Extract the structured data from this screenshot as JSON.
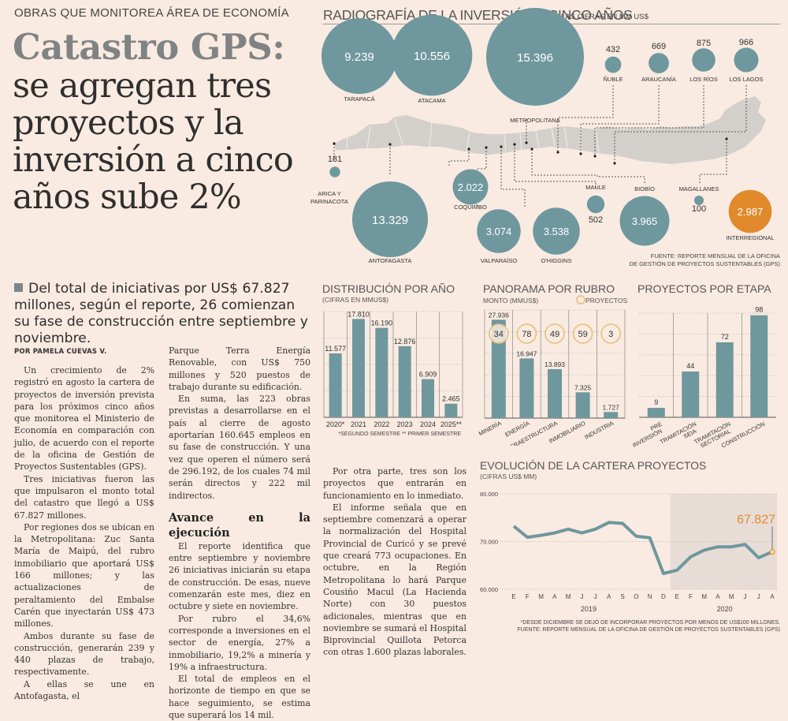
{
  "article": {
    "kicker": "OBRAS QUE MONITOREA ÁREA DE ECONOMÍA",
    "headline_bold": "Catastro GPS:",
    "headline_lines": [
      "se agregan tres",
      "proyectos y la",
      "inversión a cinco",
      "años sube 2%"
    ],
    "lead": "Del total de iniciativas por US$ 67.827 millones, según el reporte, 26 comienzan su fase de construcción entre septiembre y noviembre.",
    "byline": "POR PAMELA CUEVAS V.",
    "col1": [
      "Un crecimiento de 2% registró en agosto la cartera de proyectos de inversión prevista para los próximos cinco años que monitorea el Ministerio de Economía en comparación con julio, de acuerdo con el reporte de la oficina de Gestión de Proyectos Sustentables (GPS).",
      "Tres iniciativas fueron las que impulsaron el monto total del catastro que llegó a US$ 67.827 millones.",
      "Por regiones dos se ubican en la Metropolitana: Zuc Santa María de Maipú, del rubro inmobiliario que aportará US$ 166 millones; y las actualizaciones de peraltamiento del Embalse Carén que inyectarán US$ 473 millones.",
      "Ambos durante su fase de construcción, generarán 239 y 440 plazas de trabajo, respectivamente.",
      "A ellas se une en Antofagasta, el"
    ],
    "col2_a": [
      "Parque Terra Energía Renovable, con US$ 750 millones y 520 puestos de trabajo durante su edificación.",
      "En suma, las 223 obras previstas a desarrollarse en el país al cierre de agosto aportarían 160.645 empleos en su fase de construcción. Y una vez que operen el número será de 296.192, de los cuales 74 mil serán directos y 222 mil indirectos."
    ],
    "subhead": "Avance en la ejecución",
    "col2_b": [
      "El reporte identifica que entre septiembre y noviembre 26 iniciativas iniciarán su etapa de construcción. De esas, nueve comenzarán este mes, diez en octubre y siete en noviembre.",
      "Por rubro el 34,6% corresponde a inversiones en el sector de energía, 27% a inmobiliario, 19,2% a minería y 19% a infraestructura.",
      "El total de empleos en el horizonte de tiempo en que se hace seguimiento, se estima que superará los 14 mil."
    ],
    "col3": [
      "Por otra parte, tres son los proyectos que entrarán en funcionamiento en lo inmediato.",
      "El informe señala que en septiembre comenzará a operar la normalización del Hospital Provincial de Curicó y se prevé que creará 773 ocupaciones. En octubre, en la Región Metropolitana lo hará Parque Cousiño Macul (La Hacienda Norte) con 30 puestos adicionales, mientras que en noviembre se sumará el Hospital Biprovincial Quillota Petorca con otras 1.600 plazas laborales."
    ]
  },
  "colors": {
    "teal": "#6f979e",
    "orange": "#e08a2c",
    "map_gray": "#d3d0cb",
    "circle_outline": "#e8bf7a",
    "shade": "#e8ddd6"
  },
  "chart_data": [
    {
      "type": "bubble-map",
      "title": "RADIOGRAFÍA DE LA INVERSIÓN A CINCO AÑOS",
      "subtitle": "LAS CIFRAS EN MM US$",
      "regions": [
        {
          "name": "ARICA Y PARINACOTA",
          "value": 181,
          "label": "181"
        },
        {
          "name": "TARAPACÁ",
          "value": 9239,
          "label": "9.239"
        },
        {
          "name": "ANTOFAGASTA",
          "value": 13329,
          "label": "13.329"
        },
        {
          "name": "ATACAMA",
          "value": 10556,
          "label": "10.556"
        },
        {
          "name": "COQUIMBO",
          "value": 2022,
          "label": "2.022"
        },
        {
          "name": "VALPARAÍSO",
          "value": 3074,
          "label": "3.074"
        },
        {
          "name": "METROPOLITANA",
          "value": 15396,
          "label": "15.396"
        },
        {
          "name": "O'HIGGINS",
          "value": 3538,
          "label": "3.538"
        },
        {
          "name": "MAULE",
          "value": 502,
          "label": "502"
        },
        {
          "name": "ÑUBLE",
          "value": 432,
          "label": "432"
        },
        {
          "name": "BIOBÍO",
          "value": 3965,
          "label": "3.965"
        },
        {
          "name": "ARAUCANÍA",
          "value": 669,
          "label": "669"
        },
        {
          "name": "LOS RÍOS",
          "value": 875,
          "label": "875"
        },
        {
          "name": "LOS LAGOS",
          "value": 966,
          "label": "966"
        },
        {
          "name": "MAGALLANES",
          "value": 100,
          "label": "100"
        },
        {
          "name": "INTERREGIONAL",
          "value": 2987,
          "label": "2.987",
          "highlight": true
        }
      ],
      "source": [
        "FUENTE: REPORTE MENSUAL DE LA OFICINA",
        "DE GESTIÓN DE PROYECTOS SUSTENTABLES (GPS)"
      ]
    },
    {
      "type": "bar",
      "title": "DISTRIBUCIÓN POR AÑO",
      "subtitle": "(CIFRAS EN MMUS$)",
      "categories": [
        "2020*",
        "2021",
        "2022",
        "2023",
        "2024",
        "2025**"
      ],
      "values": [
        11577,
        17810,
        16190,
        12876,
        6909,
        2465
      ],
      "labels": [
        "11.577",
        "17.810",
        "16.190",
        "12.876",
        "6.909",
        "2.465"
      ],
      "ylim": [
        0,
        18000
      ],
      "note": "*SEGUNDO SEMESTRE ** PRIMER SEMESTRE"
    },
    {
      "type": "bar",
      "title": "PANORAMA POR RUBRO",
      "subtitle": "MONTO (MMUS$)",
      "legend": "PROYECTOS",
      "categories": [
        "MINERÍA",
        "ENERGÍA",
        "INFRAESTRUCTURA",
        "INMOBILIARIO",
        "INDUSTRIA"
      ],
      "values": [
        27936,
        16947,
        13893,
        7325,
        1727
      ],
      "labels": [
        "27.936",
        "16.947",
        "13.893",
        "7.325",
        "1.727"
      ],
      "projects": [
        34,
        78,
        49,
        59,
        3
      ],
      "ylim": [
        0,
        28000
      ]
    },
    {
      "type": "bar",
      "title": "PROYECTOS POR ETAPA",
      "categories": [
        [
          "PRE",
          "INVERSIÓN"
        ],
        [
          "TRAMITACIÓN",
          "SEIA"
        ],
        [
          "TRAMITACIÓN",
          "SECTORIAL"
        ],
        [
          "CONSTRUCCIÓN"
        ]
      ],
      "values": [
        9,
        44,
        72,
        98
      ],
      "ylim": [
        0,
        100
      ]
    },
    {
      "type": "line",
      "title": "EVOLUCIÓN DE LA CARTERA PROYECTOS",
      "subtitle": "(CIFRAS US$ MM)",
      "x": [
        "E",
        "F",
        "M",
        "A",
        "M",
        "J",
        "J",
        "A",
        "S",
        "O",
        "N",
        "D",
        "E",
        "F",
        "M",
        "A",
        "M",
        "J",
        "J",
        "A"
      ],
      "years": [
        {
          "label": "2019",
          "from": 0,
          "to": 11
        },
        {
          "label": "2020",
          "from": 12,
          "to": 19
        }
      ],
      "values": [
        73200,
        70900,
        71300,
        71800,
        72600,
        71800,
        72600,
        74000,
        73800,
        71100,
        70800,
        63300,
        64000,
        66800,
        68200,
        68900,
        68900,
        69400,
        66600,
        67827
      ],
      "yticks": [
        60000,
        70000,
        80000
      ],
      "ytick_labels": [
        "60.000",
        "70.000",
        "80.000"
      ],
      "ylim": [
        60000,
        80000
      ],
      "highlight_label": "67.827",
      "shaded_from_index": 12,
      "notes": [
        "*DESDE DICIEMBRE SE DEJÓ DE INCORPORAR PROYECTOS POR MENOS DE US$100 MILLONES.",
        "FUENTE: REPORTE MENSUAL DE LA OFICINA DE GESTIÓN DE PROYECTOS SUSTENTABLES (GPS)"
      ]
    }
  ]
}
